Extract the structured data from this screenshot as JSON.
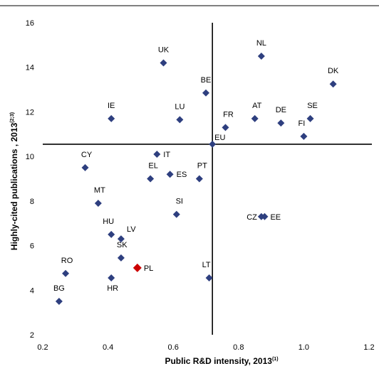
{
  "chart_data": {
    "type": "scatter",
    "xlabel": "Public R&D intensity, 2013",
    "xlabel_sup": "(1)",
    "ylabel": "Highly-cited publications , 2013",
    "ylabel_sup": "(2;3)",
    "xlim": [
      0.2,
      1.2
    ],
    "ylim": [
      2,
      16
    ],
    "x_ticks": [
      "0.2",
      "0.4",
      "0.6",
      "0.8",
      "1.0",
      "1.2"
    ],
    "y_ticks": [
      "2",
      "4",
      "6",
      "8",
      "10",
      "12",
      "14",
      "16"
    ],
    "reference_lines": {
      "x": 0.72,
      "y": 10.55
    },
    "marker_color": "#2e3f7f",
    "highlight_color": "#cc0000",
    "points": [
      {
        "label": "UK",
        "x": 0.57,
        "y": 14.2
      },
      {
        "label": "NL",
        "x": 0.87,
        "y": 14.5
      },
      {
        "label": "DK",
        "x": 1.09,
        "y": 13.25
      },
      {
        "label": "BE",
        "x": 0.7,
        "y": 12.85
      },
      {
        "label": "IE",
        "x": 0.41,
        "y": 11.7
      },
      {
        "label": "LU",
        "x": 0.62,
        "y": 11.65
      },
      {
        "label": "FR",
        "x": 0.76,
        "y": 11.3
      },
      {
        "label": "AT",
        "x": 0.85,
        "y": 11.7
      },
      {
        "label": "DE",
        "x": 0.93,
        "y": 11.5
      },
      {
        "label": "SE",
        "x": 1.02,
        "y": 11.7
      },
      {
        "label": "FI",
        "x": 1.0,
        "y": 10.9
      },
      {
        "label": "EU",
        "x": 0.72,
        "y": 10.55
      },
      {
        "label": "CY",
        "x": 0.33,
        "y": 9.5
      },
      {
        "label": "IT",
        "x": 0.55,
        "y": 10.1
      },
      {
        "label": "EL",
        "x": 0.53,
        "y": 9.0
      },
      {
        "label": "ES",
        "x": 0.59,
        "y": 9.2
      },
      {
        "label": "PT",
        "x": 0.68,
        "y": 9.0
      },
      {
        "label": "MT",
        "x": 0.37,
        "y": 7.9
      },
      {
        "label": "SI",
        "x": 0.61,
        "y": 7.4
      },
      {
        "label": "CZ",
        "x": 0.87,
        "y": 7.3
      },
      {
        "label": "EE",
        "x": 0.88,
        "y": 7.3
      },
      {
        "label": "HU",
        "x": 0.41,
        "y": 6.5
      },
      {
        "label": "LV",
        "x": 0.44,
        "y": 6.3
      },
      {
        "label": "SK",
        "x": 0.44,
        "y": 5.45
      },
      {
        "label": "RO",
        "x": 0.27,
        "y": 4.75
      },
      {
        "label": "PL",
        "x": 0.49,
        "y": 5.0,
        "highlight": true
      },
      {
        "label": "HR",
        "x": 0.41,
        "y": 4.55
      },
      {
        "label": "LT",
        "x": 0.71,
        "y": 4.55
      },
      {
        "label": "BG",
        "x": 0.25,
        "y": 3.5
      }
    ]
  }
}
